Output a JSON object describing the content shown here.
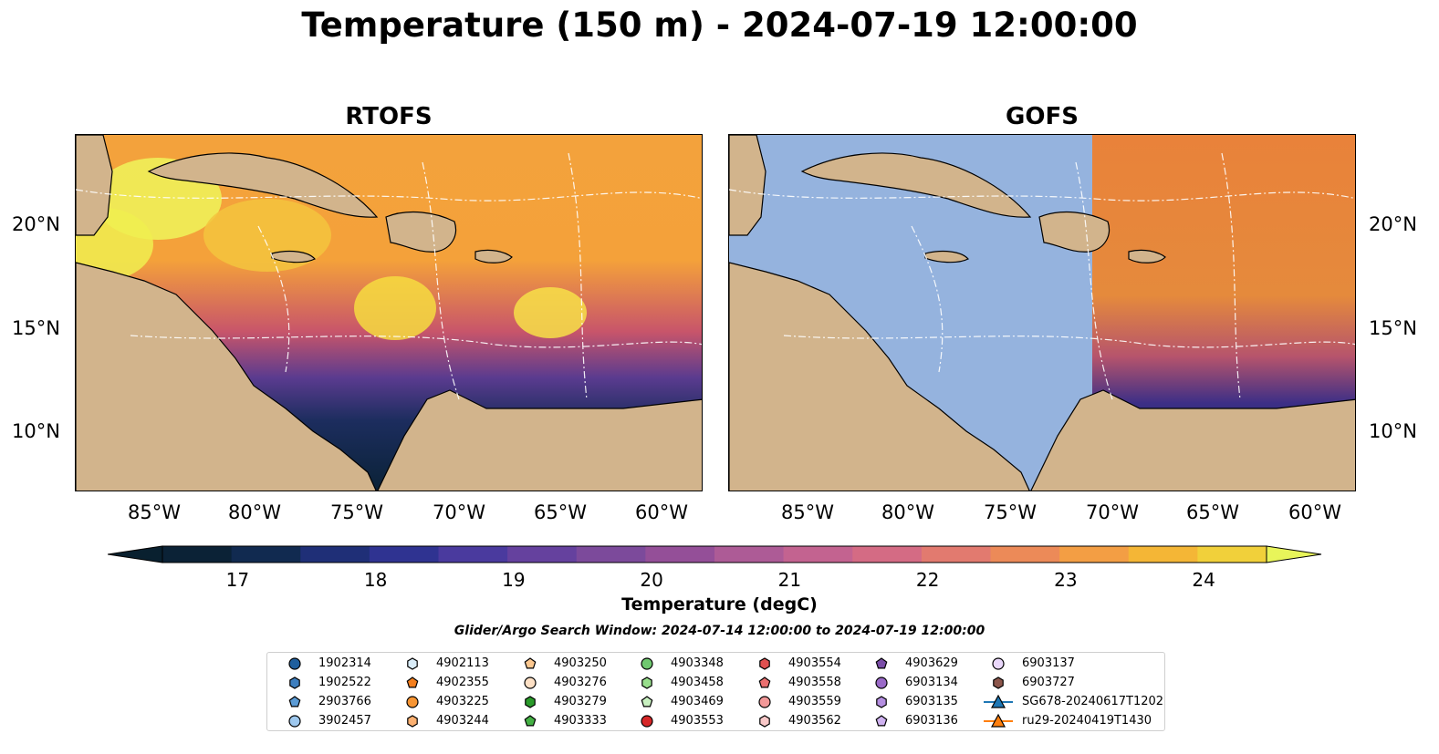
{
  "figure": {
    "title": "Temperature (150 m) - 2024-07-19 12:00:00",
    "panels": [
      {
        "title": "RTOFS"
      },
      {
        "title": "GOFS"
      }
    ],
    "lon_ticks": [
      "85°W",
      "80°W",
      "75°W",
      "70°W",
      "65°W",
      "60°W"
    ],
    "lat_ticks": [
      "20°N",
      "15°N",
      "10°N"
    ],
    "colorbar": {
      "label": "Temperature (degC)",
      "ticks": [
        "17",
        "18",
        "19",
        "20",
        "21",
        "22",
        "23",
        "24"
      ],
      "range": [
        16.5,
        24.5
      ],
      "extend": "both",
      "colormap": "thermal"
    },
    "search_window": "Glider/Argo Search Window: 2024-07-14 12:00:00 to 2024-07-19 12:00:00",
    "land_color": "#d2b48c",
    "ocean_color": "#95b3de"
  },
  "legend": [
    {
      "id": "1902314",
      "marker": "circle",
      "color": "#1f5f9e"
    },
    {
      "id": "1902522",
      "marker": "hexagon",
      "color": "#3e7fbf"
    },
    {
      "id": "2903766",
      "marker": "pentagon",
      "color": "#5b9bd5"
    },
    {
      "id": "3902457",
      "marker": "circle",
      "color": "#9ec8ee"
    },
    {
      "id": "4902113",
      "marker": "hexagon",
      "color": "#d9ecf8"
    },
    {
      "id": "4902355",
      "marker": "pentagon",
      "color": "#f47f1e"
    },
    {
      "id": "4903225",
      "marker": "circle",
      "color": "#f79533"
    },
    {
      "id": "4903244",
      "marker": "hexagon",
      "color": "#fbb071"
    },
    {
      "id": "4903250",
      "marker": "pentagon",
      "color": "#fcc890"
    },
    {
      "id": "4903276",
      "marker": "circle",
      "color": "#fde0c5"
    },
    {
      "id": "4903279",
      "marker": "hexagon",
      "color": "#2a9a2a"
    },
    {
      "id": "4903333",
      "marker": "pentagon",
      "color": "#44b044"
    },
    {
      "id": "4903348",
      "marker": "circle",
      "color": "#70c870"
    },
    {
      "id": "4903458",
      "marker": "hexagon",
      "color": "#98de8c"
    },
    {
      "id": "4903469",
      "marker": "pentagon",
      "color": "#c8f0c0"
    },
    {
      "id": "4903553",
      "marker": "circle",
      "color": "#d62728"
    },
    {
      "id": "4903554",
      "marker": "hexagon",
      "color": "#e05050"
    },
    {
      "id": "4903558",
      "marker": "pentagon",
      "color": "#ea7070"
    },
    {
      "id": "4903559",
      "marker": "circle",
      "color": "#f29898"
    },
    {
      "id": "4903562",
      "marker": "hexagon",
      "color": "#f8c8c8"
    },
    {
      "id": "4903629",
      "marker": "pentagon",
      "color": "#7b4ea8"
    },
    {
      "id": "6903134",
      "marker": "circle",
      "color": "#9a6ac8"
    },
    {
      "id": "6903135",
      "marker": "hexagon",
      "color": "#b48ee0"
    },
    {
      "id": "6903136",
      "marker": "pentagon",
      "color": "#cfb2f0"
    },
    {
      "id": "6903137",
      "marker": "circle",
      "color": "#ead8fb"
    },
    {
      "id": "6903727",
      "marker": "hexagon",
      "color": "#8c564b"
    },
    {
      "id": "SG678-20240617T1202",
      "marker": "triangle",
      "color": "#1f77b4"
    },
    {
      "id": "ru29-20240419T1430",
      "marker": "triangle",
      "color": "#ff7f0e"
    }
  ]
}
